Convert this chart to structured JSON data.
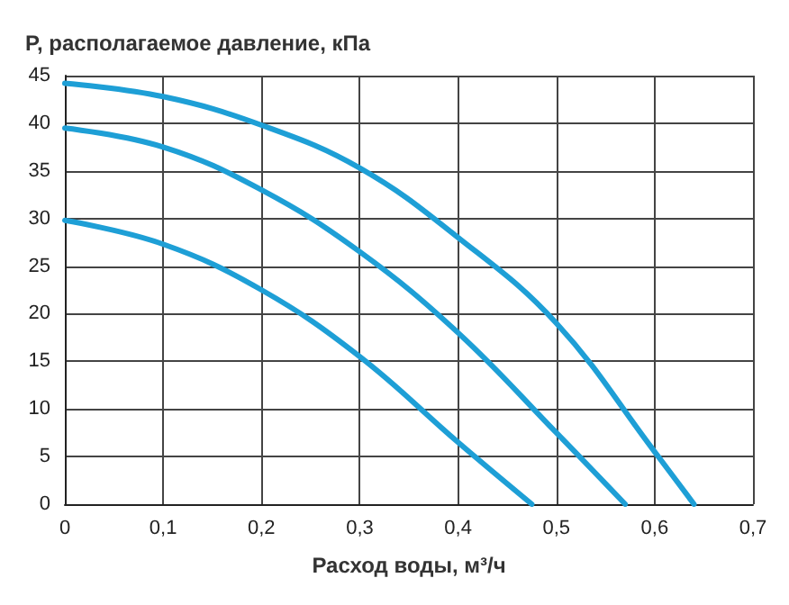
{
  "chart_data": {
    "type": "line",
    "ylabel": "P, располагаемое давление, кПа",
    "xlabel": "Расход воды, м³/ч",
    "series": [
      {
        "color": "#1e9fd6",
        "x": [
          0,
          0.1,
          0.2,
          0.3,
          0.4,
          0.5,
          0.6,
          0.64
        ],
        "values": [
          44.2,
          42.8,
          39.8,
          35.3,
          28,
          19,
          5.5,
          0
        ]
      },
      {
        "color": "#1e9fd6",
        "x": [
          0,
          0.1,
          0.2,
          0.3,
          0.4,
          0.5,
          0.57
        ],
        "values": [
          39.5,
          37.5,
          33,
          26.5,
          18,
          7.5,
          0
        ]
      },
      {
        "color": "#1e9fd6",
        "x": [
          0,
          0.1,
          0.2,
          0.3,
          0.4,
          0.475
        ],
        "values": [
          29.8,
          27.3,
          22.5,
          15.5,
          6.5,
          0
        ]
      }
    ],
    "xlim": [
      0,
      0.7
    ],
    "xticks": [
      0,
      {
        "value": 0.1,
        "label": "0,1"
      },
      {
        "value": 0.2,
        "label": "0,2"
      },
      {
        "value": 0.3,
        "label": "0,3"
      },
      {
        "value": 0.4,
        "label": "0,4"
      },
      {
        "value": 0.5,
        "label": "0,5"
      },
      {
        "value": 0.6,
        "label": "0,6"
      },
      {
        "value": 0.7,
        "label": "0,7"
      }
    ],
    "ylim": [
      0,
      45
    ],
    "yticks": [
      0,
      5,
      10,
      15,
      20,
      25,
      30,
      35,
      40,
      45
    ],
    "grid": true,
    "marker": "none",
    "line_style": "solid"
  }
}
